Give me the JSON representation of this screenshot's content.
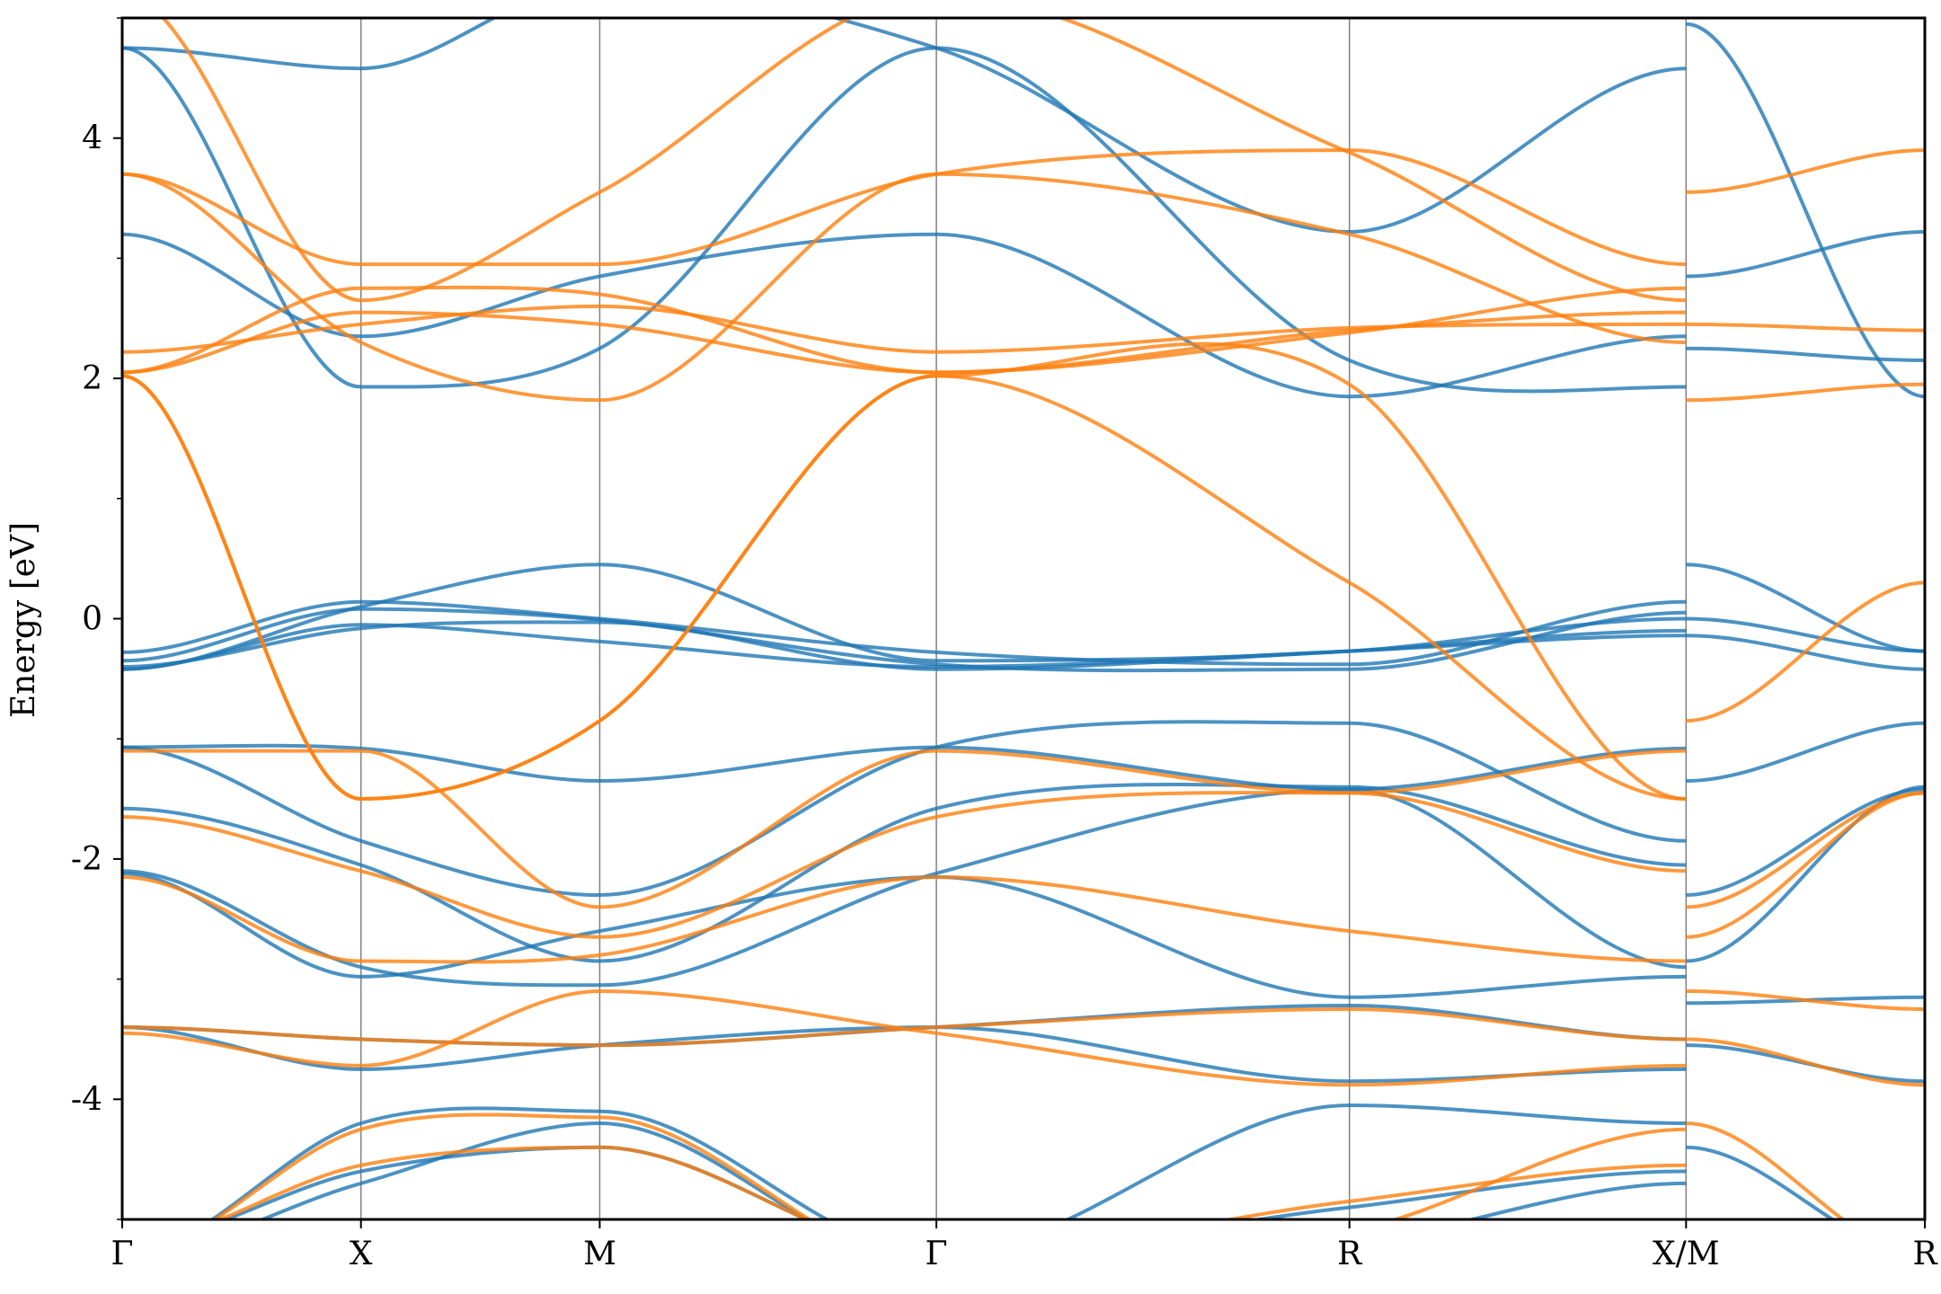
{
  "chart_data": {
    "type": "line",
    "title": "",
    "xlabel": "",
    "ylabel": "Energy [eV]",
    "ylim": [
      -5,
      5
    ],
    "yticks": [
      -4,
      -2,
      0,
      2,
      4
    ],
    "yticks_minor": [
      -5,
      -3,
      -1,
      1,
      3,
      5
    ],
    "grid": false,
    "legend": "none",
    "kpath": [
      {
        "label": "Γ",
        "x": 0.0
      },
      {
        "label": "X",
        "x": 1.0
      },
      {
        "label": "M",
        "x": 2.0
      },
      {
        "label": "Γ",
        "x": 3.41
      },
      {
        "label": "R",
        "x": 5.14
      },
      {
        "label": "X/M",
        "x": 6.55
      },
      {
        "label": "R",
        "x": 7.55
      }
    ],
    "colors": {
      "blue": "#1f77b4",
      "orange": "#ff7f0e"
    },
    "series": [
      {
        "color": "blue",
        "x": [
          0,
          1,
          2,
          3.41,
          5.14,
          6.55
        ],
        "y": [
          -0.4,
          -0.08,
          -0.03,
          -0.42,
          -0.27,
          -0.1
        ]
      },
      {
        "color": "blue",
        "x": [
          0,
          1,
          2,
          3.41,
          5.14,
          6.55
        ],
        "y": [
          -0.35,
          0.08,
          -0.01,
          -0.38,
          -0.42,
          0.05
        ]
      },
      {
        "color": "blue",
        "x": [
          0,
          1,
          2,
          3.41,
          5.14,
          6.55
        ],
        "y": [
          -0.28,
          0.14,
          0.0,
          -0.28,
          -0.38,
          0.14
        ]
      },
      {
        "color": "blue",
        "x": [
          0,
          1,
          2,
          3.41,
          5.14,
          6.55
        ],
        "y": [
          -0.42,
          0.1,
          0.45,
          -0.35,
          -0.27,
          0.0
        ]
      },
      {
        "color": "blue",
        "x": [
          0,
          1,
          2,
          3.41,
          5.14,
          6.55
        ],
        "y": [
          -0.42,
          -0.05,
          -0.19,
          -0.4,
          -0.27,
          -0.14
        ]
      },
      {
        "color": "blue",
        "x": [
          6.55,
          7.55
        ],
        "y": [
          0.45,
          -0.27
        ]
      },
      {
        "color": "blue",
        "x": [
          6.55,
          7.55
        ],
        "y": [
          -0.14,
          -0.42
        ]
      },
      {
        "color": "blue",
        "x": [
          6.55,
          7.55
        ],
        "y": [
          0.0,
          -0.27
        ]
      },
      {
        "color": "blue",
        "x": [
          0,
          1,
          2,
          3.41,
          5.14,
          6.55
        ],
        "y": [
          -1.07,
          -1.08,
          -1.35,
          -1.07,
          -1.42,
          -1.08
        ]
      },
      {
        "color": "blue",
        "x": [
          0,
          1,
          2,
          3.41,
          5.14,
          6.55
        ],
        "y": [
          -1.07,
          -1.85,
          -2.3,
          -1.07,
          -0.87,
          -1.85
        ]
      },
      {
        "color": "blue",
        "x": [
          6.55,
          7.55
        ],
        "y": [
          -1.35,
          -0.87
        ]
      },
      {
        "color": "blue",
        "x": [
          6.55,
          7.55
        ],
        "y": [
          -2.3,
          -1.42
        ]
      },
      {
        "color": "blue",
        "x": [
          0,
          1,
          2,
          3.41,
          5.14,
          6.55
        ],
        "y": [
          -1.58,
          -2.05,
          -2.85,
          -1.58,
          -1.4,
          -2.05
        ]
      },
      {
        "color": "blue",
        "x": [
          0,
          1,
          2,
          3.41,
          5.14,
          6.55
        ],
        "y": [
          -2.1,
          -2.9,
          -3.05,
          -2.12,
          -1.42,
          -2.9
        ]
      },
      {
        "color": "blue",
        "x": [
          0,
          1,
          2,
          3.41,
          5.14,
          6.55
        ],
        "y": [
          -2.12,
          -2.98,
          -2.6,
          -2.15,
          -3.15,
          -2.98
        ]
      },
      {
        "color": "blue",
        "x": [
          0,
          1,
          2,
          3.41,
          5.14,
          6.55
        ],
        "y": [
          -3.4,
          -3.5,
          -3.55,
          -3.4,
          -3.22,
          -3.5
        ]
      },
      {
        "color": "blue",
        "x": [
          0,
          1,
          2,
          3.41,
          5.14,
          6.55
        ],
        "y": [
          -3.4,
          -3.75,
          -3.55,
          -3.4,
          -3.85,
          -3.75
        ]
      },
      {
        "color": "blue",
        "x": [
          6.55,
          7.55
        ],
        "y": [
          -2.85,
          -1.4
        ]
      },
      {
        "color": "blue",
        "x": [
          6.55,
          7.55
        ],
        "y": [
          -3.2,
          -3.15
        ]
      },
      {
        "color": "blue",
        "x": [
          6.55,
          7.55
        ],
        "y": [
          -3.55,
          -3.85
        ]
      },
      {
        "color": "blue",
        "x": [
          0,
          1,
          2,
          3.41,
          5.14,
          6.55
        ],
        "y": [
          -5.2,
          -4.6,
          -4.4,
          -5.3,
          -4.9,
          -4.6
        ]
      },
      {
        "color": "blue",
        "x": [
          0,
          1,
          2,
          3.41,
          5.14,
          6.55
        ],
        "y": [
          -5.3,
          -4.7,
          -4.2,
          -5.4,
          -5.2,
          -4.7
        ]
      },
      {
        "color": "blue",
        "x": [
          0,
          1,
          2,
          3.41,
          5.14,
          6.55
        ],
        "y": [
          -5.3,
          -4.2,
          -4.1,
          -5.3,
          -4.05,
          -4.2
        ]
      },
      {
        "color": "blue",
        "x": [
          6.55,
          7.55
        ],
        "y": [
          -4.4,
          -5.3
        ]
      },
      {
        "color": "blue",
        "x": [
          0,
          1,
          2,
          3.41,
          5.14,
          6.55
        ],
        "y": [
          4.75,
          4.58,
          5.3,
          4.75,
          3.22,
          4.58
        ]
      },
      {
        "color": "blue",
        "x": [
          0,
          1,
          2,
          3.41,
          5.14,
          6.55
        ],
        "y": [
          4.75,
          1.93,
          2.25,
          4.75,
          2.15,
          1.93
        ]
      },
      {
        "color": "blue",
        "x": [
          0,
          1,
          2,
          3.41,
          5.14,
          6.55
        ],
        "y": [
          3.2,
          2.35,
          2.85,
          3.2,
          1.85,
          2.35
        ]
      },
      {
        "color": "blue",
        "x": [
          6.55,
          7.55
        ],
        "y": [
          2.25,
          2.15
        ]
      },
      {
        "color": "blue",
        "x": [
          6.55,
          7.55
        ],
        "y": [
          2.85,
          3.22
        ]
      },
      {
        "color": "blue",
        "x": [
          6.55,
          7.55
        ],
        "y": [
          4.95,
          1.85
        ]
      },
      {
        "color": "orange",
        "x": [
          0,
          1,
          2,
          3.41,
          5.14,
          6.55
        ],
        "y": [
          2.05,
          2.55,
          2.45,
          2.05,
          2.4,
          2.55
        ]
      },
      {
        "color": "orange",
        "x": [
          0,
          1,
          2,
          3.41,
          5.14,
          6.55
        ],
        "y": [
          2.05,
          2.75,
          2.7,
          2.05,
          2.38,
          2.75
        ]
      },
      {
        "color": "orange",
        "x": [
          0,
          1,
          2,
          3.41,
          5.14,
          6.55
        ],
        "y": [
          2.22,
          2.45,
          2.6,
          2.22,
          2.42,
          2.45
        ]
      },
      {
        "color": "orange",
        "x": [
          0,
          1,
          2,
          3.41,
          5.14,
          6.55
        ],
        "y": [
          3.7,
          2.95,
          2.95,
          3.7,
          3.9,
          2.95
        ]
      },
      {
        "color": "orange",
        "x": [
          0,
          1,
          2,
          3.41,
          5.14,
          6.55
        ],
        "y": [
          3.7,
          2.3,
          1.82,
          3.7,
          3.2,
          2.3
        ]
      },
      {
        "color": "orange",
        "x": [
          0,
          1,
          2,
          3.41,
          5.14,
          6.55
        ],
        "y": [
          5.2,
          2.65,
          3.55,
          5.2,
          3.88,
          2.65
        ]
      },
      {
        "color": "orange",
        "x": [
          0,
          1,
          2,
          3.41,
          5.14,
          6.55
        ],
        "y": [
          2.02,
          -1.5,
          -0.85,
          2.02,
          1.95,
          -1.5
        ]
      },
      {
        "color": "orange",
        "x": [
          0,
          1,
          2,
          3.41,
          5.14,
          6.55
        ],
        "y": [
          2.02,
          -1.5,
          -0.85,
          2.02,
          0.3,
          -1.5
        ]
      },
      {
        "color": "orange",
        "x": [
          6.55,
          7.55
        ],
        "y": [
          1.82,
          1.95
        ]
      },
      {
        "color": "orange",
        "x": [
          6.55,
          7.55
        ],
        "y": [
          3.55,
          3.9
        ]
      },
      {
        "color": "orange",
        "x": [
          6.55,
          7.55
        ],
        "y": [
          2.45,
          2.4
        ]
      },
      {
        "color": "orange",
        "x": [
          6.55,
          7.55
        ],
        "y": [
          -0.85,
          0.3
        ]
      },
      {
        "color": "orange",
        "x": [
          0,
          1,
          2,
          3.41,
          5.14,
          6.55
        ],
        "y": [
          -1.1,
          -1.1,
          -2.4,
          -1.1,
          -1.45,
          -1.1
        ]
      },
      {
        "color": "orange",
        "x": [
          0,
          1,
          2,
          3.41,
          5.14,
          6.55
        ],
        "y": [
          -1.65,
          -2.1,
          -2.65,
          -1.65,
          -1.45,
          -2.1
        ]
      },
      {
        "color": "orange",
        "x": [
          0,
          1,
          2,
          3.41,
          5.14,
          6.55
        ],
        "y": [
          -2.15,
          -2.85,
          -2.8,
          -2.15,
          -2.6,
          -2.85
        ]
      },
      {
        "color": "orange",
        "x": [
          0,
          1,
          2,
          3.41,
          5.14,
          6.55
        ],
        "y": [
          -3.4,
          -3.5,
          -3.55,
          -3.4,
          -3.25,
          -3.5
        ]
      },
      {
        "color": "orange",
        "x": [
          0,
          1,
          2,
          3.41,
          5.14,
          6.55
        ],
        "y": [
          -3.45,
          -3.72,
          -3.1,
          -3.45,
          -3.88,
          -3.72
        ]
      },
      {
        "color": "orange",
        "x": [
          6.55,
          7.55
        ],
        "y": [
          -2.4,
          -1.45
        ]
      },
      {
        "color": "orange",
        "x": [
          6.55,
          7.55
        ],
        "y": [
          -2.65,
          -1.45
        ]
      },
      {
        "color": "orange",
        "x": [
          6.55,
          7.55
        ],
        "y": [
          -3.1,
          -3.25
        ]
      },
      {
        "color": "orange",
        "x": [
          6.55,
          7.55
        ],
        "y": [
          -3.5,
          -3.88
        ]
      },
      {
        "color": "orange",
        "x": [
          0,
          1,
          2,
          3.41,
          5.14,
          6.55
        ],
        "y": [
          -5.2,
          -4.55,
          -4.4,
          -5.3,
          -4.85,
          -4.55
        ]
      },
      {
        "color": "orange",
        "x": [
          0,
          1,
          2,
          3.41,
          5.14,
          6.55
        ],
        "y": [
          -5.3,
          -4.25,
          -4.15,
          -5.4,
          -5.1,
          -4.25
        ]
      },
      {
        "color": "orange",
        "x": [
          6.55,
          7.55
        ],
        "y": [
          -4.2,
          -5.3
        ]
      }
    ]
  }
}
